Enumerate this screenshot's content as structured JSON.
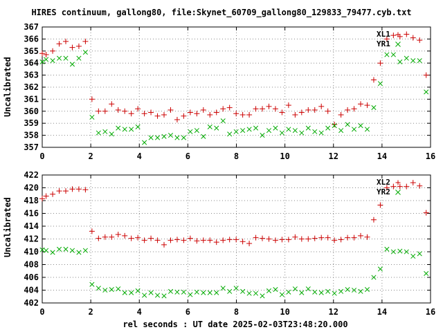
{
  "title": "HIRES continuum, gallong80, file:Skynet_60709_gallong80_129833_79477.cyb.txt",
  "xlabel": "rel seconds : UT date 2025-02-03T23:48:20.000",
  "colors": {
    "series_plus": "#cc0000",
    "series_cross": "#00aa00",
    "axes": "#000000",
    "grid": "#888888"
  },
  "chart_data": [
    {
      "type": "scatter",
      "ylabel": "Uncalibrated",
      "xlim": [
        0,
        16
      ],
      "ylim": [
        357,
        367
      ],
      "xticks": [
        0,
        2,
        4,
        6,
        8,
        10,
        12,
        14,
        16
      ],
      "yticks": [
        357,
        358,
        359,
        360,
        361,
        362,
        363,
        364,
        365,
        366,
        367
      ],
      "grid": true,
      "legend_position": "top-right",
      "series": [
        {
          "name": "XL1",
          "marker": "plus",
          "x": [
            0.0,
            0.16,
            0.43,
            0.7,
            0.97,
            1.24,
            1.51,
            1.78,
            2.05,
            2.32,
            2.59,
            2.86,
            3.13,
            3.4,
            3.67,
            3.94,
            4.21,
            4.48,
            4.75,
            5.02,
            5.29,
            5.56,
            5.83,
            6.1,
            6.37,
            6.64,
            6.91,
            7.18,
            7.45,
            7.72,
            7.99,
            8.26,
            8.53,
            8.8,
            9.07,
            9.34,
            9.61,
            9.88,
            10.15,
            10.42,
            10.69,
            10.96,
            11.23,
            11.5,
            11.77,
            12.04,
            12.31,
            12.58,
            12.85,
            13.12,
            13.39,
            13.66,
            13.93,
            14.2,
            14.47,
            14.74,
            15.01,
            15.28,
            15.55,
            15.82
          ],
          "y": [
            364.8,
            364.7,
            365.0,
            365.6,
            365.8,
            365.3,
            365.4,
            365.8,
            361.0,
            360.0,
            360.0,
            360.6,
            360.1,
            360.0,
            359.8,
            360.2,
            359.8,
            359.9,
            359.6,
            359.7,
            360.1,
            359.3,
            359.6,
            359.9,
            359.8,
            360.1,
            359.7,
            359.9,
            360.2,
            360.3,
            359.8,
            359.7,
            359.7,
            360.2,
            360.2,
            360.4,
            360.2,
            359.9,
            360.5,
            359.7,
            359.9,
            360.1,
            360.1,
            360.4,
            360.0,
            358.9,
            359.7,
            360.1,
            360.2,
            360.6,
            360.5,
            362.6,
            364.0,
            366.0,
            366.3,
            366.2,
            366.4,
            366.1,
            365.9,
            363.0
          ]
        },
        {
          "name": "YR1",
          "marker": "cross",
          "x": [
            0.0,
            0.16,
            0.43,
            0.7,
            0.97,
            1.24,
            1.51,
            1.78,
            2.05,
            2.32,
            2.59,
            2.86,
            3.13,
            3.4,
            3.67,
            3.94,
            4.21,
            4.48,
            4.75,
            5.02,
            5.29,
            5.56,
            5.83,
            6.1,
            6.37,
            6.64,
            6.91,
            7.18,
            7.45,
            7.72,
            7.99,
            8.26,
            8.53,
            8.8,
            9.07,
            9.34,
            9.61,
            9.88,
            10.15,
            10.42,
            10.69,
            10.96,
            11.23,
            11.5,
            11.77,
            12.04,
            12.31,
            12.58,
            12.85,
            13.12,
            13.39,
            13.66,
            13.93,
            14.2,
            14.47,
            14.74,
            15.01,
            15.28,
            15.55,
            15.82
          ],
          "y": [
            364.1,
            364.3,
            364.2,
            364.4,
            364.4,
            363.9,
            364.4,
            364.9,
            359.5,
            358.2,
            358.3,
            358.1,
            358.6,
            358.5,
            358.5,
            358.7,
            357.4,
            357.8,
            357.8,
            357.9,
            358.0,
            357.8,
            357.8,
            358.3,
            358.4,
            357.9,
            358.7,
            358.6,
            359.2,
            358.1,
            358.3,
            358.4,
            358.5,
            358.6,
            358.0,
            358.4,
            358.6,
            358.2,
            358.5,
            358.4,
            358.2,
            358.6,
            358.3,
            358.2,
            358.6,
            358.8,
            358.4,
            358.9,
            358.5,
            358.8,
            358.5,
            360.3,
            362.3,
            364.7,
            364.7,
            364.1,
            364.4,
            364.2,
            364.2,
            361.6
          ]
        }
      ]
    },
    {
      "type": "scatter",
      "ylabel": "Uncalibrated",
      "xlim": [
        0,
        16
      ],
      "ylim": [
        402,
        422
      ],
      "xticks": [
        0,
        2,
        4,
        6,
        8,
        10,
        12,
        14,
        16
      ],
      "yticks": [
        402,
        404,
        406,
        408,
        410,
        412,
        414,
        416,
        418,
        420,
        422
      ],
      "grid": true,
      "legend_position": "top-right",
      "series": [
        {
          "name": "XL2",
          "marker": "plus",
          "x": [
            0.0,
            0.16,
            0.43,
            0.7,
            0.97,
            1.24,
            1.51,
            1.78,
            2.05,
            2.32,
            2.59,
            2.86,
            3.13,
            3.4,
            3.67,
            3.94,
            4.21,
            4.48,
            4.75,
            5.02,
            5.29,
            5.56,
            5.83,
            6.1,
            6.37,
            6.64,
            6.91,
            7.18,
            7.45,
            7.72,
            7.99,
            8.26,
            8.53,
            8.8,
            9.07,
            9.34,
            9.61,
            9.88,
            10.15,
            10.42,
            10.69,
            10.96,
            11.23,
            11.5,
            11.77,
            12.04,
            12.31,
            12.58,
            12.85,
            13.12,
            13.39,
            13.66,
            13.93,
            14.2,
            14.47,
            14.74,
            15.01,
            15.28,
            15.55,
            15.82
          ],
          "y": [
            418.3,
            418.7,
            419.0,
            419.5,
            419.5,
            419.8,
            419.8,
            419.7,
            413.2,
            412.1,
            412.3,
            412.3,
            412.7,
            412.5,
            412.1,
            412.2,
            411.8,
            412.1,
            411.8,
            411.1,
            411.8,
            411.9,
            411.8,
            412.1,
            411.7,
            411.8,
            411.8,
            411.5,
            411.8,
            411.9,
            411.9,
            411.6,
            411.3,
            412.2,
            412.1,
            412.0,
            411.8,
            411.9,
            411.9,
            412.3,
            412.0,
            412.0,
            412.1,
            412.2,
            412.2,
            411.8,
            411.9,
            412.2,
            412.2,
            412.5,
            412.3,
            415.0,
            417.3,
            420.0,
            420.2,
            420.2,
            420.2,
            420.8,
            420.3,
            416.1
          ]
        },
        {
          "name": "YR2",
          "marker": "cross",
          "x": [
            0.0,
            0.16,
            0.43,
            0.7,
            0.97,
            1.24,
            1.51,
            1.78,
            2.05,
            2.32,
            2.59,
            2.86,
            3.13,
            3.4,
            3.67,
            3.94,
            4.21,
            4.48,
            4.75,
            5.02,
            5.29,
            5.56,
            5.83,
            6.1,
            6.37,
            6.64,
            6.91,
            7.18,
            7.45,
            7.72,
            7.99,
            8.26,
            8.53,
            8.8,
            9.07,
            9.34,
            9.61,
            9.88,
            10.15,
            10.42,
            10.69,
            10.96,
            11.23,
            11.5,
            11.77,
            12.04,
            12.31,
            12.58,
            12.85,
            13.12,
            13.39,
            13.66,
            13.93,
            14.2,
            14.47,
            14.74,
            15.01,
            15.28,
            15.55,
            15.82
          ],
          "y": [
            410.3,
            410.2,
            409.9,
            410.4,
            410.4,
            410.2,
            409.9,
            410.2,
            404.9,
            404.3,
            404.0,
            404.1,
            404.2,
            403.6,
            403.6,
            403.9,
            403.2,
            403.6,
            403.2,
            403.1,
            403.8,
            403.7,
            403.7,
            403.3,
            403.7,
            403.6,
            403.6,
            403.6,
            404.3,
            403.8,
            404.3,
            403.8,
            403.5,
            403.5,
            403.1,
            403.9,
            404.1,
            403.3,
            403.7,
            404.2,
            403.6,
            404.2,
            403.7,
            403.6,
            403.8,
            403.5,
            403.8,
            404.1,
            404.0,
            403.8,
            404.1,
            406.0,
            407.3,
            410.4,
            410.0,
            410.1,
            410.0,
            409.3,
            409.7,
            406.6
          ]
        }
      ]
    }
  ]
}
